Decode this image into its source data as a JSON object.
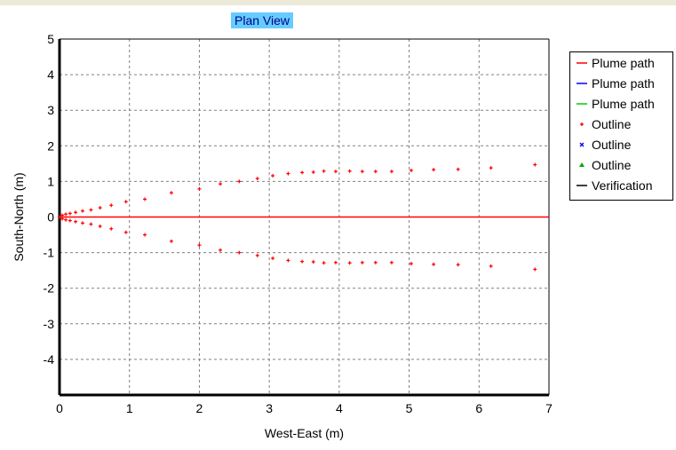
{
  "chart_data": {
    "type": "scatter",
    "title": "Plan View",
    "xlabel": "West-East (m)",
    "ylabel": "South-North (m)",
    "xlim": [
      0,
      7
    ],
    "ylim": [
      -5,
      5
    ],
    "x_ticks": [
      "0",
      "1",
      "2",
      "3",
      "4",
      "5",
      "6",
      "7"
    ],
    "y_ticks": [
      "5",
      "4",
      "3",
      "2",
      "1",
      "0",
      "-1",
      "-2",
      "-3",
      "-4"
    ],
    "grid": true,
    "legend_position": "right",
    "series": [
      {
        "name": "Plume path",
        "kind": "line",
        "color": "#ff0000",
        "points": [
          [
            0,
            0
          ],
          [
            7,
            0
          ]
        ]
      },
      {
        "name": "Plume path",
        "kind": "line",
        "color": "#0000ff",
        "points": []
      },
      {
        "name": "Plume path",
        "kind": "line",
        "color": "#00cc00",
        "points": []
      },
      {
        "name": "Outline",
        "kind": "marker",
        "marker": "plus",
        "color": "#ff0000",
        "x": [
          0.0,
          0.04,
          0.09,
          0.15,
          0.23,
          0.33,
          0.45,
          0.58,
          0.74,
          0.95,
          1.22,
          1.6,
          2.0,
          2.3,
          2.57,
          2.83,
          3.05,
          3.27,
          3.47,
          3.63,
          3.78,
          3.95,
          4.15,
          4.33,
          4.52,
          4.75,
          5.03,
          5.35,
          5.7,
          6.17,
          6.8
        ],
        "y": [
          0.0,
          0.05,
          0.08,
          0.1,
          0.13,
          0.17,
          0.2,
          0.26,
          0.33,
          0.43,
          0.5,
          0.68,
          0.79,
          0.93,
          1.0,
          1.08,
          1.16,
          1.22,
          1.25,
          1.26,
          1.29,
          1.28,
          1.29,
          1.28,
          1.28,
          1.28,
          1.31,
          1.33,
          1.34,
          1.38,
          1.47
        ]
      },
      {
        "name": "Outline",
        "kind": "marker",
        "marker": "plus",
        "color": "#ff0000",
        "x": [
          0.04,
          0.09,
          0.15,
          0.23,
          0.33,
          0.45,
          0.58,
          0.74,
          0.95,
          1.22,
          1.6,
          2.0,
          2.3,
          2.57,
          2.83,
          3.05,
          3.27,
          3.47,
          3.63,
          3.78,
          3.95,
          4.15,
          4.33,
          4.52,
          4.75,
          5.03,
          5.35,
          5.7,
          6.17,
          6.8
        ],
        "y": [
          -0.05,
          -0.08,
          -0.1,
          -0.13,
          -0.17,
          -0.2,
          -0.26,
          -0.33,
          -0.43,
          -0.5,
          -0.68,
          -0.79,
          -0.93,
          -1.0,
          -1.08,
          -1.16,
          -1.22,
          -1.25,
          -1.26,
          -1.29,
          -1.28,
          -1.29,
          -1.28,
          -1.28,
          -1.28,
          -1.31,
          -1.33,
          -1.34,
          -1.38,
          -1.47
        ]
      }
    ]
  },
  "legend": {
    "items": [
      {
        "label": "Plume path",
        "symbol": "line",
        "color": "#ff0000"
      },
      {
        "label": "Plume path",
        "symbol": "line",
        "color": "#0000ff"
      },
      {
        "label": "Plume path",
        "symbol": "line",
        "color": "#00cc00"
      },
      {
        "label": "Outline",
        "symbol": "plus",
        "color": "#ff0000"
      },
      {
        "label": "Outline",
        "symbol": "cross",
        "color": "#0000ff"
      },
      {
        "label": "Outline",
        "symbol": "triangle",
        "color": "#00aa00"
      },
      {
        "label": "Verification",
        "symbol": "line",
        "color": "#000000"
      }
    ]
  },
  "colors": {
    "title_bg": "#66ccff",
    "grid": "#808080",
    "frame": "#000000"
  }
}
